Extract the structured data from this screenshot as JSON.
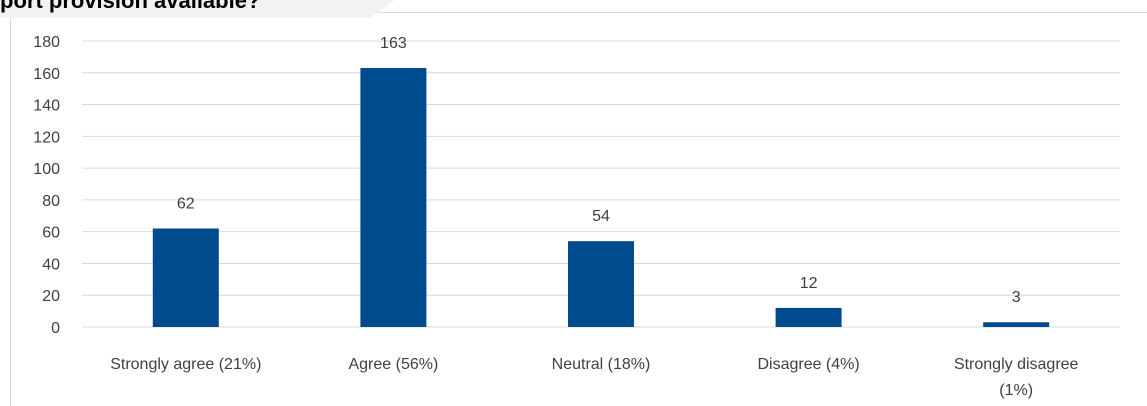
{
  "title_fragment": "port provision available?",
  "chart_data": {
    "type": "bar",
    "title": "",
    "xlabel": "",
    "ylabel": "",
    "categories": [
      "Strongly agree (21%)",
      "Agree (56%)",
      "Neutral (18%)",
      "Disagree (4%)",
      "Strongly disagree (1%)"
    ],
    "category_lines": [
      [
        "Strongly agree (21%)"
      ],
      [
        "Agree (56%)"
      ],
      [
        "Neutral (18%)"
      ],
      [
        "Disagree (4%)"
      ],
      [
        "Strongly disagree",
        "(1%)"
      ]
    ],
    "values": [
      62,
      163,
      54,
      12,
      3
    ],
    "ylim": [
      0,
      180
    ],
    "yticks": [
      0,
      20,
      40,
      60,
      80,
      100,
      120,
      140,
      160,
      180
    ],
    "grid": true,
    "legend": "none",
    "data_labels": true,
    "bar_color": "#004b8d",
    "grid_color": "#d9d9d9",
    "text_color": "#404040"
  }
}
